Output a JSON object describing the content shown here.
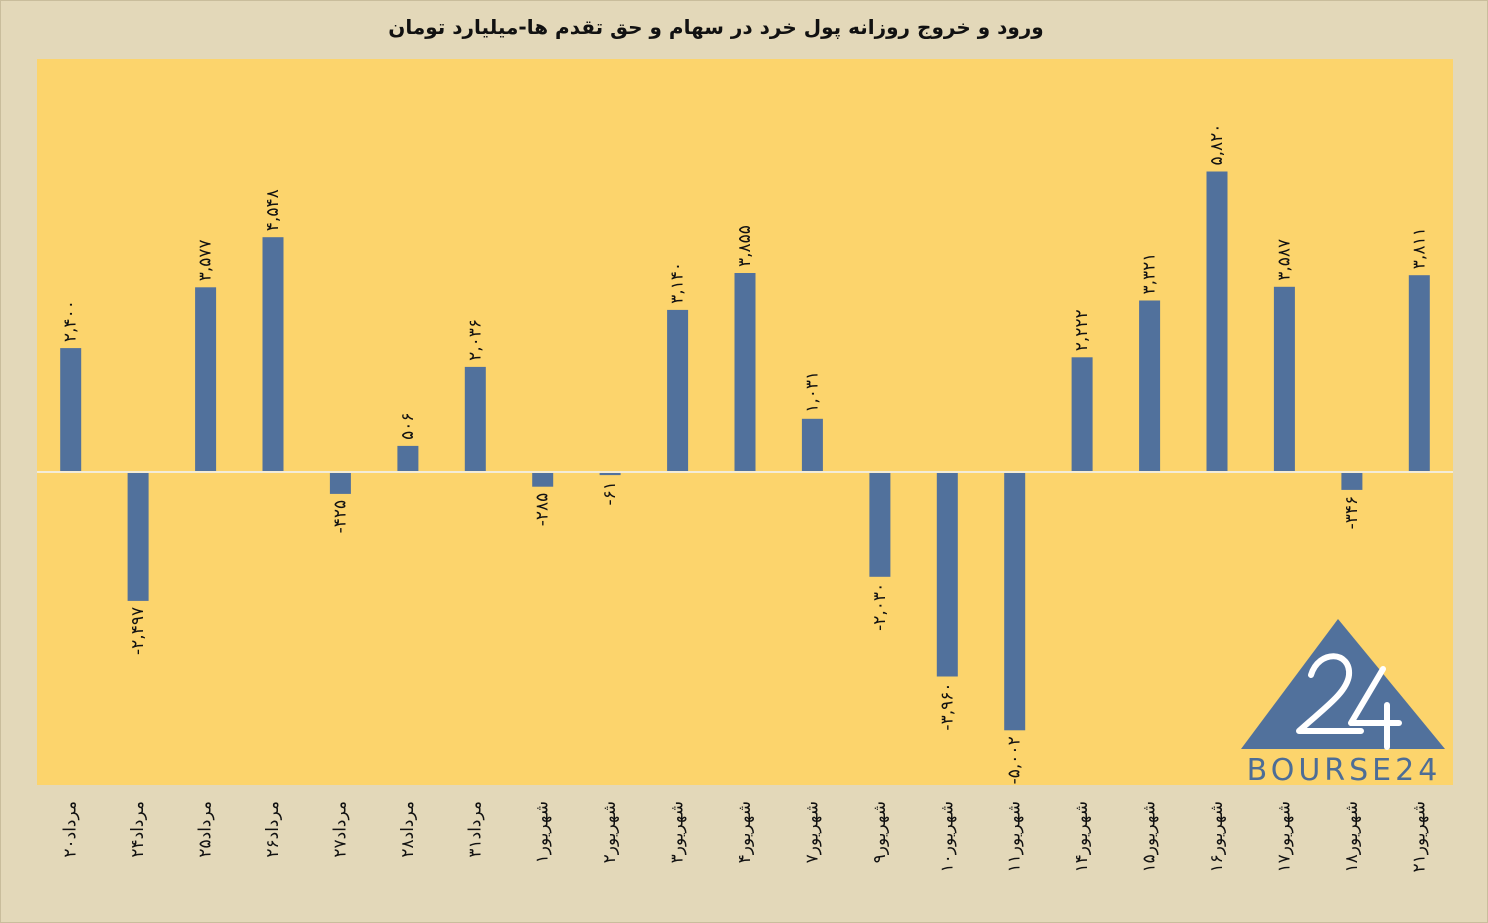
{
  "chart_data": {
    "type": "bar",
    "title": "ورود و خروج روزانه پول خرد در سهام و حق تقدم ها-میلیارد تومان",
    "categories": [
      "۲۰مرداد",
      "۲۴مرداد",
      "۲۵مرداد",
      "۲۶مرداد",
      "۲۷مرداد",
      "۲۸مرداد",
      "۳۱مرداد",
      "۱شهریور",
      "۲شهریور",
      "۳شهریور",
      "۴شهریور",
      "۷شهریور",
      "۹شهریور",
      "۱۰شهریور",
      "۱۱شهریور",
      "۱۴شهریور",
      "۱۵شهریور",
      "۱۶شهریور",
      "۱۷شهریور",
      "۱۸شهریور",
      "۲۱شهریور"
    ],
    "values": [
      2400,
      -2497,
      3577,
      4548,
      -425,
      506,
      2036,
      -285,
      -61,
      3140,
      3855,
      1031,
      -2030,
      -3960,
      -5002,
      2222,
      3321,
      5820,
      3587,
      -346,
      3811
    ],
    "value_labels": [
      "۲,۴۰۰",
      "-۲,۴۹۷",
      "۳,۵۷۷",
      "۴,۵۴۸",
      "-۴۲۵",
      "۵۰۶",
      "۲,۰۳۶",
      "-۲۸۵",
      "-۶۱",
      "۳,۱۴۰",
      "۳,۸۵۵",
      "۱,۰۳۱",
      "-۲,۰۳۰",
      "-۳,۹۶۰",
      "-۵,۰۰۲",
      "۲,۲۲۲",
      "۳,۳۲۱",
      "۵,۸۲۰",
      "۳,۵۸۷",
      "-۳۴۶",
      "۳,۸۱۱"
    ],
    "ylim": [
      -6100,
      8000
    ],
    "grid": false,
    "colors": {
      "bar": "#51719c",
      "plot_bg": "#fcd46c",
      "page_bg": "#e3d8b9",
      "zero_line": "#f3ecd8"
    }
  },
  "logo": {
    "number": "24",
    "name": "BOURSE24"
  }
}
